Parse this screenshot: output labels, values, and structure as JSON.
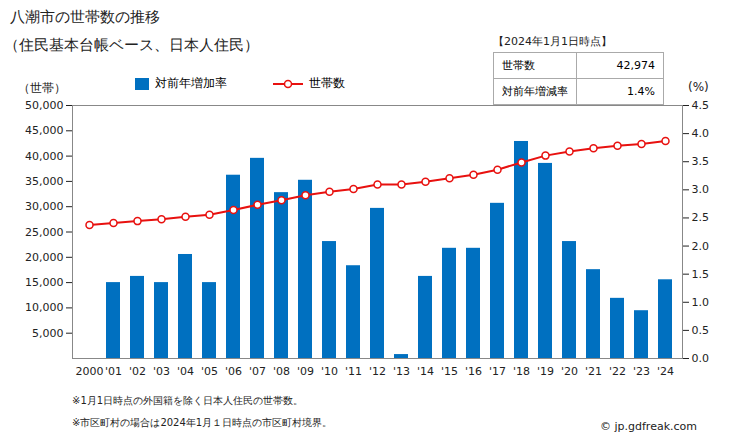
{
  "chart_data": {
    "type": "bar",
    "title": "八潮市の世帯数の推移",
    "subtitle": "（住民基本台帳ベース、日本人住民）",
    "categories": [
      "2000",
      "'01",
      "'02",
      "'03",
      "'04",
      "'05",
      "'06",
      "'07",
      "'08",
      "'09",
      "'10",
      "'11",
      "'12",
      "'13",
      "'14",
      "'15",
      "'16",
      "'17",
      "'18",
      "'19",
      "'20",
      "'21",
      "'22",
      "'23",
      "'24"
    ],
    "series": [
      {
        "name": "対前年増加率",
        "type": "bar",
        "color": "#0070c0",
        "axis": "y2",
        "values": [
          null,
          1.35,
          1.46,
          1.35,
          1.85,
          1.35,
          3.26,
          3.56,
          2.95,
          3.17,
          2.08,
          1.65,
          2.67,
          0.07,
          1.46,
          1.96,
          1.96,
          2.76,
          3.86,
          3.47,
          2.08,
          1.58,
          1.07,
          0.85,
          1.4
        ]
      },
      {
        "name": "世帯数",
        "type": "line",
        "color": "#e8110f",
        "marker": "circle",
        "values": [
          26400,
          26760,
          27150,
          27520,
          28030,
          28410,
          29335,
          30380,
          31275,
          32270,
          32944,
          33490,
          34385,
          34410,
          34910,
          35600,
          36300,
          37310,
          38750,
          40094,
          40928,
          41574,
          42024,
          42381,
          42974
        ]
      }
    ],
    "ylabel": "（世帯）",
    "ylim": [
      0,
      50000
    ],
    "yticks": [
      {
        "value": 5000,
        "label": "5,000"
      },
      {
        "value": 10000,
        "label": "10,000"
      },
      {
        "value": 15000,
        "label": "15,000"
      },
      {
        "value": 20000,
        "label": "20,000"
      },
      {
        "value": 25000,
        "label": "25,000"
      },
      {
        "value": 30000,
        "label": "30,000"
      },
      {
        "value": 35000,
        "label": "35,000"
      },
      {
        "value": 40000,
        "label": "40,000"
      },
      {
        "value": 45000,
        "label": "45,000"
      },
      {
        "value": 50000,
        "label": "50,000"
      }
    ],
    "y2label": "(%)",
    "y2lim": [
      0,
      4.5
    ],
    "y2ticks": [
      {
        "value": 0,
        "label": "0.0"
      },
      0.5,
      {
        "value": 1,
        "label": "1.0"
      },
      1.5,
      {
        "value": 2,
        "label": "2.0"
      },
      2.5,
      {
        "value": 3,
        "label": "3.0"
      },
      3.5,
      {
        "value": 4,
        "label": "4.0"
      },
      4.5
    ],
    "grid": false,
    "legend": "top",
    "info_box": {
      "title": "【2024年1月1日時点】",
      "rows": [
        {
          "label": "世帯数",
          "value": "42,974"
        },
        {
          "label": "対前年増減率",
          "value": "1.4%"
        }
      ]
    },
    "notes": [
      "※1月1日時点の外国籍を除く日本人住民の世帯数。",
      "※市区町村の場合は2024年1月１日時点の市区町村境界。"
    ],
    "source": "© jp.gdfreak.com"
  }
}
